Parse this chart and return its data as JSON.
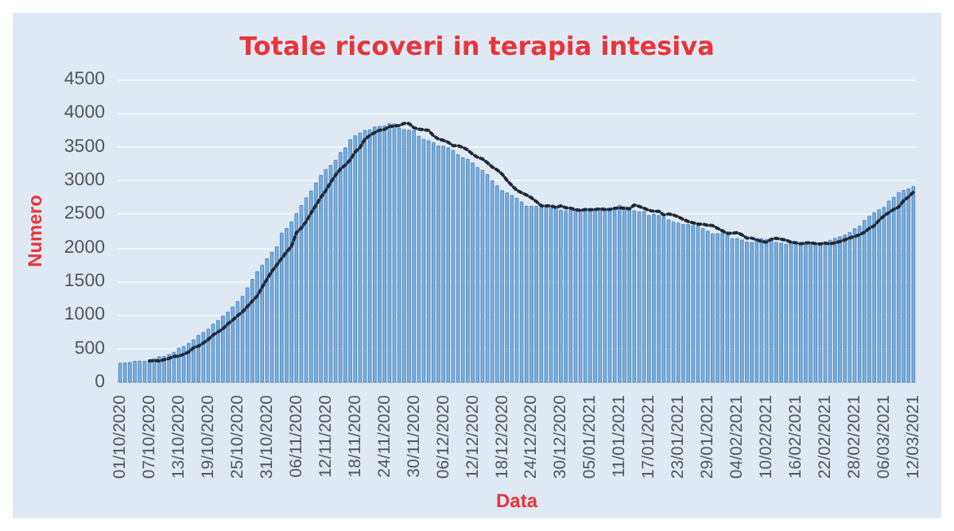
{
  "chart_data": {
    "type": "bar",
    "title": "Totale ricoveri in terapia intesiva",
    "xlabel": "Data",
    "ylabel": "Numero",
    "categories": [
      "01/10/2020",
      null,
      null,
      null,
      null,
      null,
      "07/10/2020",
      null,
      null,
      null,
      null,
      null,
      "13/10/2020",
      null,
      null,
      null,
      null,
      null,
      "19/10/2020",
      null,
      null,
      null,
      null,
      null,
      "25/10/2020",
      null,
      null,
      null,
      null,
      null,
      "31/10/2020",
      null,
      null,
      null,
      null,
      null,
      "06/11/2020",
      null,
      null,
      null,
      null,
      null,
      "12/11/2020",
      null,
      null,
      null,
      null,
      null,
      "18/11/2020",
      null,
      null,
      null,
      null,
      null,
      "24/11/2020",
      null,
      null,
      null,
      null,
      null,
      "30/11/2020",
      null,
      null,
      null,
      null,
      null,
      "06/12/2020",
      null,
      null,
      null,
      null,
      null,
      "12/12/2020",
      null,
      null,
      null,
      null,
      null,
      "18/12/2020",
      null,
      null,
      null,
      null,
      null,
      "24/12/2020",
      null,
      null,
      null,
      null,
      null,
      "30/12/2020",
      null,
      null,
      null,
      null,
      null,
      "05/01/2021",
      null,
      null,
      null,
      null,
      null,
      "11/01/2021",
      null,
      null,
      null,
      null,
      null,
      "17/01/2021",
      null,
      null,
      null,
      null,
      null,
      "23/01/2021",
      null,
      null,
      null,
      null,
      null,
      "29/01/2021",
      null,
      null,
      null,
      null,
      null,
      "04/02/2021",
      null,
      null,
      null,
      null,
      null,
      "10/02/2021",
      null,
      null,
      null,
      null,
      null,
      "16/02/2021",
      null,
      null,
      null,
      null,
      null,
      "22/02/2021",
      null,
      null,
      null,
      null,
      null,
      "28/02/2021",
      null,
      null,
      null,
      null,
      null,
      "06/03/2021",
      null,
      null,
      null,
      null,
      null,
      "12/03/2021"
    ],
    "series": [
      {
        "color": "#7eb0dc",
        "values": [
          291,
          297,
          303,
          319,
          323,
          319,
          337,
          358,
          387,
          390,
          420,
          452,
          514,
          539,
          586,
          638,
          705,
          750,
          797,
          870,
          926,
          992,
          1049,
          1128,
          1208,
          1284,
          1411,
          1536,
          1651,
          1746,
          1843,
          1939,
          2022,
          2225,
          2292,
          2391,
          2515,
          2634,
          2749,
          2849,
          2971,
          3081,
          3170,
          3230,
          3306,
          3422,
          3492,
          3612,
          3670,
          3712,
          3748,
          3758,
          3801,
          3810,
          3816,
          3848,
          3846,
          3782,
          3762,
          3753,
          3744,
          3663,
          3616,
          3597,
          3567,
          3517,
          3517,
          3492,
          3452,
          3388,
          3345,
          3320,
          3265,
          3199,
          3158,
          3095,
          3003,
          2926,
          2855,
          2819,
          2784,
          2743,
          2687,
          2624,
          2624,
          2622,
          2599,
          2623,
          2594,
          2589,
          2565,
          2555,
          2569,
          2566,
          2569,
          2579,
          2569,
          2569,
          2587,
          2593,
          2587,
          2579,
          2636,
          2615,
          2587,
          2557,
          2542,
          2544,
          2487,
          2503,
          2487,
          2461,
          2421,
          2391,
          2372,
          2352,
          2352,
          2334,
          2330,
          2289,
          2252,
          2214,
          2215,
          2225,
          2194,
          2143,
          2143,
          2121,
          2093,
          2084,
          2128,
          2142,
          2128,
          2114,
          2085,
          2074,
          2059,
          2074,
          2074,
          2063,
          2057,
          2069,
          2059,
          2074,
          2094,
          2118,
          2146,
          2168,
          2194,
          2231,
          2289,
          2327,
          2411,
          2475,
          2525,
          2571,
          2605,
          2700,
          2756,
          2827,
          2859,
          2880,
          2914
        ]
      },
      {
        "type": "line",
        "color": "#1f2a3a",
        "line_style": "dotted",
        "values": [
          null,
          null,
          null,
          null,
          null,
          null,
          319,
          323,
          319,
          337,
          358,
          387,
          390,
          420,
          452,
          514,
          539,
          586,
          638,
          705,
          750,
          797,
          870,
          926,
          992,
          1049,
          1128,
          1208,
          1284,
          1411,
          1536,
          1651,
          1746,
          1843,
          1939,
          2022,
          2225,
          2292,
          2391,
          2515,
          2634,
          2749,
          2849,
          2971,
          3081,
          3170,
          3230,
          3306,
          3422,
          3492,
          3612,
          3670,
          3712,
          3748,
          3758,
          3801,
          3810,
          3816,
          3848,
          3846,
          3782,
          3762,
          3753,
          3744,
          3663,
          3616,
          3597,
          3567,
          3517,
          3517,
          3492,
          3452,
          3388,
          3345,
          3320,
          3265,
          3199,
          3158,
          3095,
          3003,
          2926,
          2855,
          2819,
          2784,
          2743,
          2687,
          2624,
          2624,
          2622,
          2599,
          2623,
          2594,
          2589,
          2565,
          2555,
          2569,
          2566,
          2569,
          2579,
          2569,
          2569,
          2587,
          2593,
          2587,
          2579,
          2636,
          2615,
          2587,
          2557,
          2542,
          2544,
          2487,
          2503,
          2487,
          2461,
          2421,
          2391,
          2372,
          2352,
          2352,
          2334,
          2330,
          2289,
          2252,
          2214,
          2215,
          2225,
          2194,
          2143,
          2143,
          2121,
          2093,
          2084,
          2128,
          2142,
          2128,
          2114,
          2085,
          2074,
          2059,
          2074,
          2074,
          2063,
          2057,
          2069,
          2059,
          2074,
          2094,
          2118,
          2146,
          2168,
          2194,
          2231,
          2289,
          2327,
          2411,
          2475,
          2525,
          2571,
          2605,
          2700,
          2756,
          2827
        ]
      }
    ],
    "ylim": [
      0,
      4500
    ],
    "yticks": [
      0,
      500,
      1000,
      1500,
      2000,
      2500,
      3000,
      3500,
      4000,
      4500
    ],
    "grid": "y",
    "marker": "none"
  }
}
